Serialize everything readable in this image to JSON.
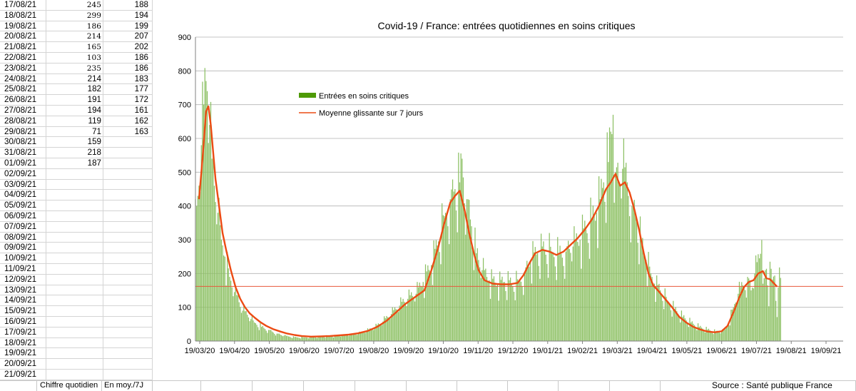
{
  "sheet": {
    "rows": [
      {
        "date": "17/08/21",
        "daily": "245",
        "avg": "188",
        "serif": true
      },
      {
        "date": "18/08/21",
        "daily": "299",
        "avg": "194",
        "serif": true
      },
      {
        "date": "19/08/21",
        "daily": "186",
        "avg": "199",
        "serif": true
      },
      {
        "date": "20/08/21",
        "daily": "214",
        "avg": "207",
        "serif": true
      },
      {
        "date": "21/08/21",
        "daily": "165",
        "avg": "202",
        "serif": true
      },
      {
        "date": "22/08/21",
        "daily": "103",
        "avg": "186",
        "serif": true
      },
      {
        "date": "23/08/21",
        "daily": "235",
        "avg": "186",
        "serif": true
      },
      {
        "date": "24/08/21",
        "daily": "214",
        "avg": "183",
        "serif": false
      },
      {
        "date": "25/08/21",
        "daily": "182",
        "avg": "177",
        "serif": false
      },
      {
        "date": "26/08/21",
        "daily": "191",
        "avg": "172",
        "serif": false
      },
      {
        "date": "27/08/21",
        "daily": "194",
        "avg": "161",
        "serif": false
      },
      {
        "date": "28/08/21",
        "daily": "119",
        "avg": "162",
        "serif": false
      },
      {
        "date": "29/08/21",
        "daily": "71",
        "avg": "163",
        "serif": false
      },
      {
        "date": "30/08/21",
        "daily": "159",
        "avg": "",
        "serif": false
      },
      {
        "date": "31/08/21",
        "daily": "218",
        "avg": "",
        "serif": false
      },
      {
        "date": "01/09/21",
        "daily": "187",
        "avg": "",
        "serif": false
      },
      {
        "date": "02/09/21",
        "daily": "",
        "avg": "",
        "serif": false
      },
      {
        "date": "03/09/21",
        "daily": "",
        "avg": "",
        "serif": false
      },
      {
        "date": "04/09/21",
        "daily": "",
        "avg": "",
        "serif": false
      },
      {
        "date": "05/09/21",
        "daily": "",
        "avg": "",
        "serif": false
      },
      {
        "date": "06/09/21",
        "daily": "",
        "avg": "",
        "serif": false
      },
      {
        "date": "07/09/21",
        "daily": "",
        "avg": "",
        "serif": false
      },
      {
        "date": "08/09/21",
        "daily": "",
        "avg": "",
        "serif": false
      },
      {
        "date": "09/09/21",
        "daily": "",
        "avg": "",
        "serif": false
      },
      {
        "date": "10/09/21",
        "daily": "",
        "avg": "",
        "serif": false
      },
      {
        "date": "11/09/21",
        "daily": "",
        "avg": "",
        "serif": false
      },
      {
        "date": "12/09/21",
        "daily": "",
        "avg": "",
        "serif": false
      },
      {
        "date": "13/09/21",
        "daily": "",
        "avg": "",
        "serif": false
      },
      {
        "date": "14/09/21",
        "daily": "",
        "avg": "",
        "serif": false
      },
      {
        "date": "15/09/21",
        "daily": "",
        "avg": "",
        "serif": false
      },
      {
        "date": "16/09/21",
        "daily": "",
        "avg": "",
        "serif": false
      },
      {
        "date": "17/09/21",
        "daily": "",
        "avg": "",
        "serif": false
      },
      {
        "date": "18/09/21",
        "daily": "",
        "avg": "",
        "serif": false
      },
      {
        "date": "19/09/21",
        "daily": "",
        "avg": "",
        "serif": false
      },
      {
        "date": "20/09/21",
        "daily": "",
        "avg": "",
        "serif": false
      },
      {
        "date": "21/09/21",
        "daily": "",
        "avg": "",
        "serif": false
      }
    ]
  },
  "footer": {
    "col_daily": "Chiffre quotidien",
    "col_avg": "En moy./7J",
    "source": "Source : Santé publique France"
  },
  "colors": {
    "bars": "#8cc063",
    "legend_bar": "#4e9a06",
    "average_line": "#ec4b14",
    "reference_line": "#e8593c",
    "grid": "#b3b3b3"
  },
  "chart_data": {
    "type": "bar",
    "title": "Covid-19 / France: entrées quotidiennes en soins critiques",
    "xlabel": "",
    "ylabel": "",
    "ylim": [
      0,
      900
    ],
    "yticks": [
      "0",
      "100",
      "200",
      "300",
      "400",
      "500",
      "600",
      "700",
      "800",
      "900"
    ],
    "x_tick_labels": [
      "19/03/20",
      "19/04/20",
      "19/05/20",
      "19/06/20",
      "19/07/20",
      "19/08/20",
      "19/09/20",
      "19/10/20",
      "19/11/20",
      "19/12/20",
      "19/01/21",
      "19/02/21",
      "19/03/21",
      "19/04/21",
      "19/05/21",
      "19/06/21",
      "19/07/21",
      "19/08/21",
      "19/09/21"
    ],
    "x_range_days": [
      0,
      549
    ],
    "legend": {
      "position": "upper-left",
      "entries": [
        {
          "label": "Entrées en soins critiques",
          "kind": "bar"
        },
        {
          "label": "Moyenne glissante sur 7 jours",
          "kind": "line"
        }
      ]
    },
    "reference_line_value": 162,
    "series": [
      {
        "name": "Entrées en soins critiques",
        "kind": "bar",
        "day_values": [
          [
            1,
            400
          ],
          [
            3,
            460
          ],
          [
            5,
            580
          ],
          [
            7,
            700
          ],
          [
            9,
            770
          ],
          [
            10,
            740
          ],
          [
            12,
            640
          ],
          [
            14,
            540
          ],
          [
            16,
            460
          ],
          [
            19,
            380
          ],
          [
            22,
            300
          ],
          [
            25,
            250
          ],
          [
            29,
            190
          ],
          [
            33,
            145
          ],
          [
            37,
            115
          ],
          [
            40,
            90
          ],
          [
            44,
            78
          ],
          [
            47,
            65
          ],
          [
            50,
            55
          ],
          [
            56,
            42
          ],
          [
            62,
            33
          ],
          [
            69,
            22
          ],
          [
            75,
            16
          ],
          [
            80,
            13
          ],
          [
            86,
            11
          ],
          [
            92,
            11
          ],
          [
            100,
            12
          ],
          [
            108,
            14
          ],
          [
            116,
            15
          ],
          [
            124,
            16
          ],
          [
            131,
            18
          ],
          [
            138,
            22
          ],
          [
            145,
            30
          ],
          [
            152,
            40
          ],
          [
            159,
            58
          ],
          [
            166,
            80
          ],
          [
            173,
            105
          ],
          [
            180,
            125
          ],
          [
            187,
            140
          ],
          [
            193,
            175
          ],
          [
            200,
            225
          ],
          [
            206,
            295
          ],
          [
            211,
            370
          ],
          [
            216,
            420
          ],
          [
            220,
            450
          ],
          [
            224,
            470
          ],
          [
            226,
            540
          ],
          [
            230,
            420
          ],
          [
            234,
            340
          ],
          [
            238,
            260
          ],
          [
            243,
            210
          ],
          [
            249,
            180
          ],
          [
            256,
            170
          ],
          [
            262,
            175
          ],
          [
            268,
            170
          ],
          [
            274,
            175
          ],
          [
            279,
            200
          ],
          [
            284,
            240
          ],
          [
            290,
            260
          ],
          [
            296,
            270
          ],
          [
            302,
            265
          ],
          [
            308,
            255
          ],
          [
            314,
            265
          ],
          [
            320,
            280
          ],
          [
            326,
            300
          ],
          [
            331,
            330
          ],
          [
            336,
            360
          ],
          [
            340,
            380
          ],
          [
            343,
            420
          ],
          [
            346,
            470
          ],
          [
            350,
            530
          ],
          [
            352,
            620
          ],
          [
            354,
            670
          ],
          [
            356,
            500
          ],
          [
            359,
            470
          ],
          [
            362,
            510
          ],
          [
            366,
            470
          ],
          [
            370,
            400
          ],
          [
            374,
            360
          ],
          [
            378,
            290
          ],
          [
            382,
            240
          ],
          [
            386,
            200
          ],
          [
            389,
            170
          ],
          [
            394,
            150
          ],
          [
            400,
            120
          ],
          [
            406,
            95
          ],
          [
            413,
            72
          ],
          [
            420,
            55
          ],
          [
            427,
            42
          ],
          [
            434,
            34
          ],
          [
            441,
            28
          ],
          [
            446,
            27
          ],
          [
            449,
            35
          ],
          [
            452,
            55
          ],
          [
            456,
            100
          ],
          [
            460,
            140
          ],
          [
            464,
            165
          ],
          [
            468,
            190
          ],
          [
            471,
            150
          ],
          [
            474,
            200
          ],
          [
            478,
            245
          ],
          [
            480,
            299
          ],
          [
            482,
            186
          ],
          [
            484,
            214
          ],
          [
            485,
            165
          ],
          [
            486,
            103
          ],
          [
            487,
            235
          ],
          [
            488,
            214
          ],
          [
            489,
            182
          ],
          [
            490,
            191
          ],
          [
            491,
            194
          ],
          [
            492,
            119
          ],
          [
            493,
            71
          ],
          [
            494,
            159
          ],
          [
            495,
            218
          ],
          [
            496,
            187
          ]
        ]
      },
      {
        "name": "Moyenne glissante sur 7 jours",
        "kind": "line",
        "day_values": [
          [
            3,
            420
          ],
          [
            6,
            540
          ],
          [
            9,
            680
          ],
          [
            11,
            695
          ],
          [
            13,
            640
          ],
          [
            15,
            560
          ],
          [
            17,
            480
          ],
          [
            20,
            400
          ],
          [
            23,
            320
          ],
          [
            26,
            270
          ],
          [
            30,
            210
          ],
          [
            34,
            160
          ],
          [
            38,
            125
          ],
          [
            42,
            100
          ],
          [
            46,
            82
          ],
          [
            50,
            70
          ],
          [
            55,
            56
          ],
          [
            60,
            45
          ],
          [
            66,
            35
          ],
          [
            72,
            28
          ],
          [
            78,
            22
          ],
          [
            84,
            18
          ],
          [
            90,
            15
          ],
          [
            98,
            13
          ],
          [
            106,
            14
          ],
          [
            114,
            15
          ],
          [
            122,
            17
          ],
          [
            130,
            19
          ],
          [
            138,
            23
          ],
          [
            146,
            30
          ],
          [
            154,
            42
          ],
          [
            162,
            60
          ],
          [
            170,
            85
          ],
          [
            178,
            110
          ],
          [
            186,
            130
          ],
          [
            194,
            150
          ],
          [
            200,
            210
          ],
          [
            206,
            280
          ],
          [
            211,
            350
          ],
          [
            216,
            410
          ],
          [
            220,
            430
          ],
          [
            224,
            445
          ],
          [
            228,
            390
          ],
          [
            232,
            320
          ],
          [
            236,
            260
          ],
          [
            240,
            210
          ],
          [
            245,
            180
          ],
          [
            252,
            170
          ],
          [
            259,
            168
          ],
          [
            266,
            168
          ],
          [
            273,
            172
          ],
          [
            278,
            195
          ],
          [
            283,
            230
          ],
          [
            288,
            260
          ],
          [
            294,
            270
          ],
          [
            300,
            265
          ],
          [
            306,
            255
          ],
          [
            312,
            265
          ],
          [
            318,
            285
          ],
          [
            324,
            305
          ],
          [
            330,
            330
          ],
          [
            336,
            360
          ],
          [
            342,
            400
          ],
          [
            348,
            450
          ],
          [
            352,
            470
          ],
          [
            356,
            495
          ],
          [
            360,
            460
          ],
          [
            364,
            470
          ],
          [
            368,
            440
          ],
          [
            372,
            390
          ],
          [
            376,
            330
          ],
          [
            380,
            260
          ],
          [
            384,
            200
          ],
          [
            388,
            165
          ],
          [
            392,
            150
          ],
          [
            398,
            125
          ],
          [
            404,
            100
          ],
          [
            410,
            72
          ],
          [
            416,
            55
          ],
          [
            422,
            42
          ],
          [
            428,
            34
          ],
          [
            434,
            28
          ],
          [
            440,
            26
          ],
          [
            446,
            29
          ],
          [
            451,
            45
          ],
          [
            456,
            85
          ],
          [
            461,
            130
          ],
          [
            465,
            160
          ],
          [
            469,
            175
          ],
          [
            473,
            180
          ],
          [
            477,
            200
          ],
          [
            481,
            207
          ],
          [
            484,
            186
          ],
          [
            487,
            183
          ],
          [
            490,
            172
          ],
          [
            493,
            161
          ]
        ]
      }
    ]
  }
}
